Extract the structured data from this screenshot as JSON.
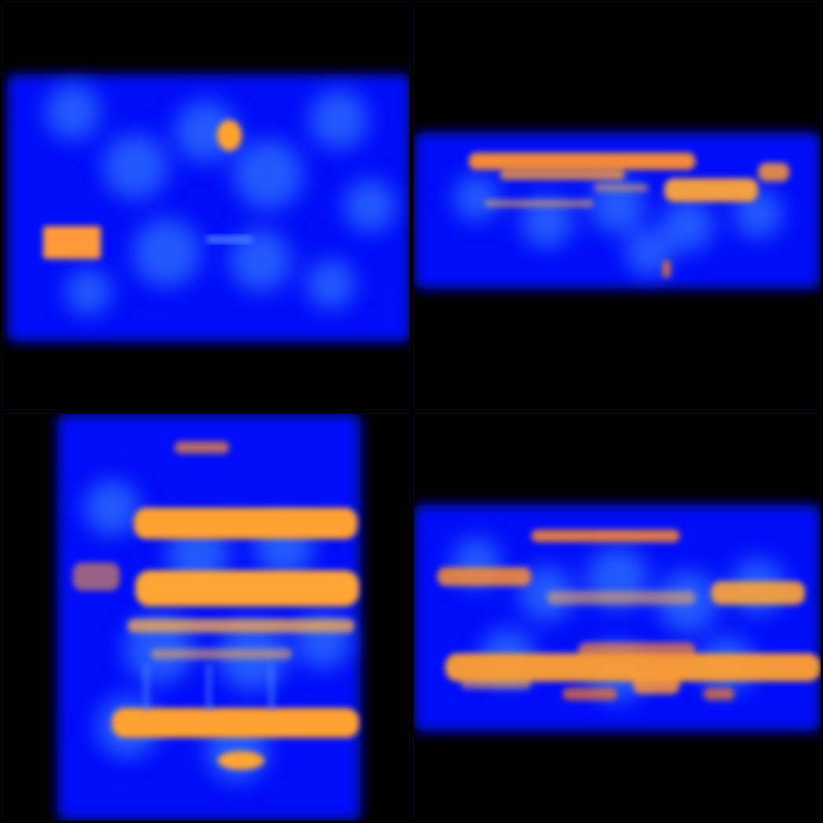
{
  "image": {
    "description_free": true,
    "panels": [
      {
        "id": "top-left"
      },
      {
        "id": "top-right"
      },
      {
        "id": "bottom-left"
      },
      {
        "id": "bottom-right"
      }
    ],
    "colors": {
      "background": "#000000",
      "blue_deep": "#0008ff",
      "blue_light": "#2f74ff",
      "orange": "#ffa030",
      "orange_dark": "#ff7a1e"
    }
  }
}
